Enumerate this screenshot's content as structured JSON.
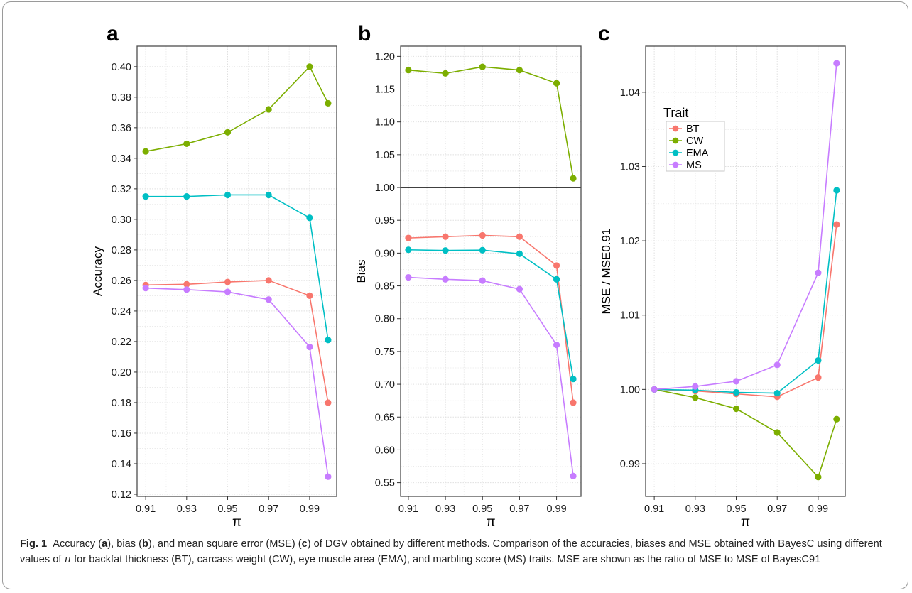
{
  "colors": {
    "BT": "#F8766D",
    "CW": "#7CAE00",
    "EMA": "#00BFC4",
    "MS": "#C77CFF",
    "panel_border": "#4d4d4d",
    "grid": "#e0e0e0",
    "reference_line": "#000000"
  },
  "caption": {
    "label": "Fig. 1",
    "part1": "Accuracy (",
    "a": "a",
    "part2": "), bias (",
    "b": "b",
    "part3": "), and mean square error (MSE) (",
    "c": "c",
    "part4": ") of DGV obtained by different methods. Comparison of the accuracies, biases and MSE obtained with BayesC using different values of ",
    "pi": "π",
    "part5": " for backfat thickness (BT), carcass weight (CW), eye muscle area (EMA), and marbling score (MS) traits. MSE are shown as the ratio of MSE to MSE of BayesC91"
  },
  "chart_data": [
    {
      "panel": "a",
      "type": "line",
      "xlabel": "π",
      "ylabel": "Accuracy",
      "x": [
        0.91,
        0.93,
        0.95,
        0.97,
        0.99,
        0.999
      ],
      "xticks": [
        0.91,
        0.93,
        0.95,
        0.97,
        0.99
      ],
      "xtick_labels": [
        "0.91",
        "0.93",
        "0.95",
        "0.97",
        "0.99"
      ],
      "xlim": [
        0.9058,
        1.0032
      ],
      "ylim": [
        0.1186,
        0.4134
      ],
      "yticks": [
        0.12,
        0.14,
        0.16,
        0.18,
        0.2,
        0.22,
        0.24,
        0.26,
        0.28,
        0.3,
        0.32,
        0.34,
        0.36,
        0.38,
        0.4
      ],
      "ytick_labels": [
        "0.12",
        "0.14",
        "0.16",
        "0.18",
        "0.20",
        "0.22",
        "0.24",
        "0.26",
        "0.28",
        "0.30",
        "0.32",
        "0.34",
        "0.36",
        "0.38",
        "0.40"
      ],
      "grid": true,
      "series": [
        {
          "name": "BT",
          "values": [
            0.257,
            0.2575,
            0.259,
            0.26,
            0.25,
            0.18
          ]
        },
        {
          "name": "CW",
          "values": [
            0.3445,
            0.3495,
            0.357,
            0.372,
            0.4,
            0.376
          ]
        },
        {
          "name": "EMA",
          "values": [
            0.315,
            0.315,
            0.316,
            0.316,
            0.301,
            0.221
          ]
        },
        {
          "name": "MS",
          "values": [
            0.255,
            0.254,
            0.2525,
            0.2475,
            0.2165,
            0.1315
          ]
        }
      ]
    },
    {
      "panel": "b",
      "type": "line",
      "xlabel": "π",
      "ylabel": "Bias",
      "x": [
        0.91,
        0.93,
        0.95,
        0.97,
        0.99,
        0.999
      ],
      "xticks": [
        0.91,
        0.93,
        0.95,
        0.97,
        0.99
      ],
      "xtick_labels": [
        "0.91",
        "0.93",
        "0.95",
        "0.97",
        "0.99"
      ],
      "xlim": [
        0.9058,
        1.0032
      ],
      "ylim": [
        0.529,
        1.2155
      ],
      "yticks": [
        0.55,
        0.6,
        0.65,
        0.7,
        0.75,
        0.8,
        0.85,
        0.9,
        0.95,
        1.0,
        1.05,
        1.1,
        1.15,
        1.2
      ],
      "ytick_labels": [
        "0.55",
        "0.60",
        "0.65",
        "0.70",
        "0.75",
        "0.80",
        "0.85",
        "0.90",
        "0.95",
        "1.00",
        "1.05",
        "1.10",
        "1.15",
        "1.20"
      ],
      "reference_y": 1.0,
      "grid": true,
      "series": [
        {
          "name": "BT",
          "values": [
            0.923,
            0.925,
            0.927,
            0.925,
            0.881,
            0.672
          ]
        },
        {
          "name": "CW",
          "values": [
            1.179,
            1.174,
            1.184,
            1.179,
            1.159,
            1.014
          ]
        },
        {
          "name": "EMA",
          "values": [
            0.905,
            0.904,
            0.9045,
            0.899,
            0.86,
            0.708
          ]
        },
        {
          "name": "MS",
          "values": [
            0.863,
            0.86,
            0.858,
            0.845,
            0.76,
            0.56
          ]
        }
      ]
    },
    {
      "panel": "c",
      "type": "line",
      "xlabel": "π",
      "ylabel": "MSE / MSE0.91",
      "x": [
        0.91,
        0.93,
        0.95,
        0.97,
        0.99,
        0.999
      ],
      "xticks": [
        0.91,
        0.93,
        0.95,
        0.97,
        0.99
      ],
      "xtick_labels": [
        "0.91",
        "0.93",
        "0.95",
        "0.97",
        "0.99"
      ],
      "xlim": [
        0.9058,
        1.0032
      ],
      "ylim": [
        0.9856,
        1.0462
      ],
      "yticks": [
        0.99,
        1.0,
        1.01,
        1.02,
        1.03,
        1.04
      ],
      "ytick_labels": [
        "0.99",
        "1.00",
        "1.01",
        "1.02",
        "1.03",
        "1.04"
      ],
      "grid": true,
      "legend": {
        "title": "Trait",
        "entries": [
          "BT",
          "CW",
          "EMA",
          "MS"
        ],
        "placement": "top-left"
      },
      "series": [
        {
          "name": "BT",
          "values": [
            1.0,
            0.9998,
            0.9994,
            0.999,
            1.0016,
            1.0222
          ]
        },
        {
          "name": "CW",
          "values": [
            1.0,
            0.9989,
            0.9974,
            0.9942,
            0.9882,
            0.996
          ]
        },
        {
          "name": "EMA",
          "values": [
            1.0,
            0.9999,
            0.9996,
            0.9995,
            1.0039,
            1.0268
          ]
        },
        {
          "name": "MS",
          "values": [
            1.0,
            1.0004,
            1.0011,
            1.0033,
            1.0157,
            1.0439
          ]
        }
      ]
    }
  ]
}
